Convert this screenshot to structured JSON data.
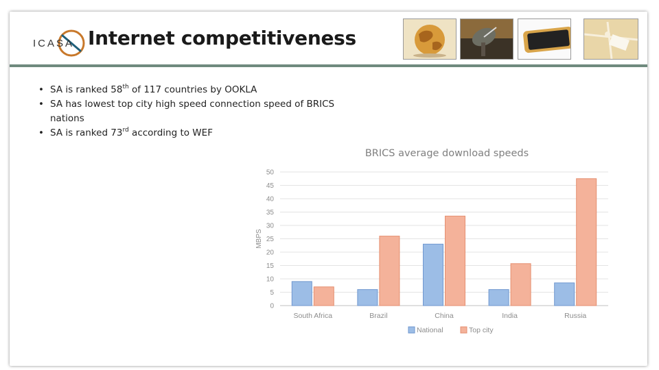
{
  "slide": {
    "title": "Internet competitiveness",
    "logo_text": "ICASA",
    "bullets": [
      {
        "pre": "SA is ranked 58",
        "sup": "th",
        "post": " of 117 countries by OOKLA"
      },
      {
        "pre": "SA has lowest top city high speed connection speed of BRICS nations",
        "sup": "",
        "post": ""
      },
      {
        "pre": "SA is ranked 73",
        "sup": "rd",
        "post": " according to WEF"
      }
    ],
    "images": [
      {
        "icon": "globe-icon"
      },
      {
        "icon": "satellite-dish-icon"
      },
      {
        "icon": "smartphone-icon"
      },
      {
        "icon": "gift-tag-icon"
      }
    ]
  },
  "colors": {
    "national": "#9cbde6",
    "top_city": "#f4b29a",
    "rule": "#6f8a7e"
  },
  "chart_data": {
    "type": "bar",
    "title": "BRICS average download speeds",
    "xlabel": "",
    "ylabel": "MBPS",
    "ylim": [
      0,
      50
    ],
    "yticks": [
      0,
      5,
      10,
      15,
      20,
      25,
      30,
      35,
      40,
      45,
      50
    ],
    "categories": [
      "South Africa",
      "Brazil",
      "China",
      "India",
      "Russia"
    ],
    "series": [
      {
        "name": "National",
        "values": [
          9,
          6,
          23,
          6,
          8.5
        ]
      },
      {
        "name": "Top city",
        "values": [
          7,
          26,
          33.5,
          15.7,
          47.5
        ]
      }
    ],
    "grid": true,
    "legend": "bottom"
  }
}
